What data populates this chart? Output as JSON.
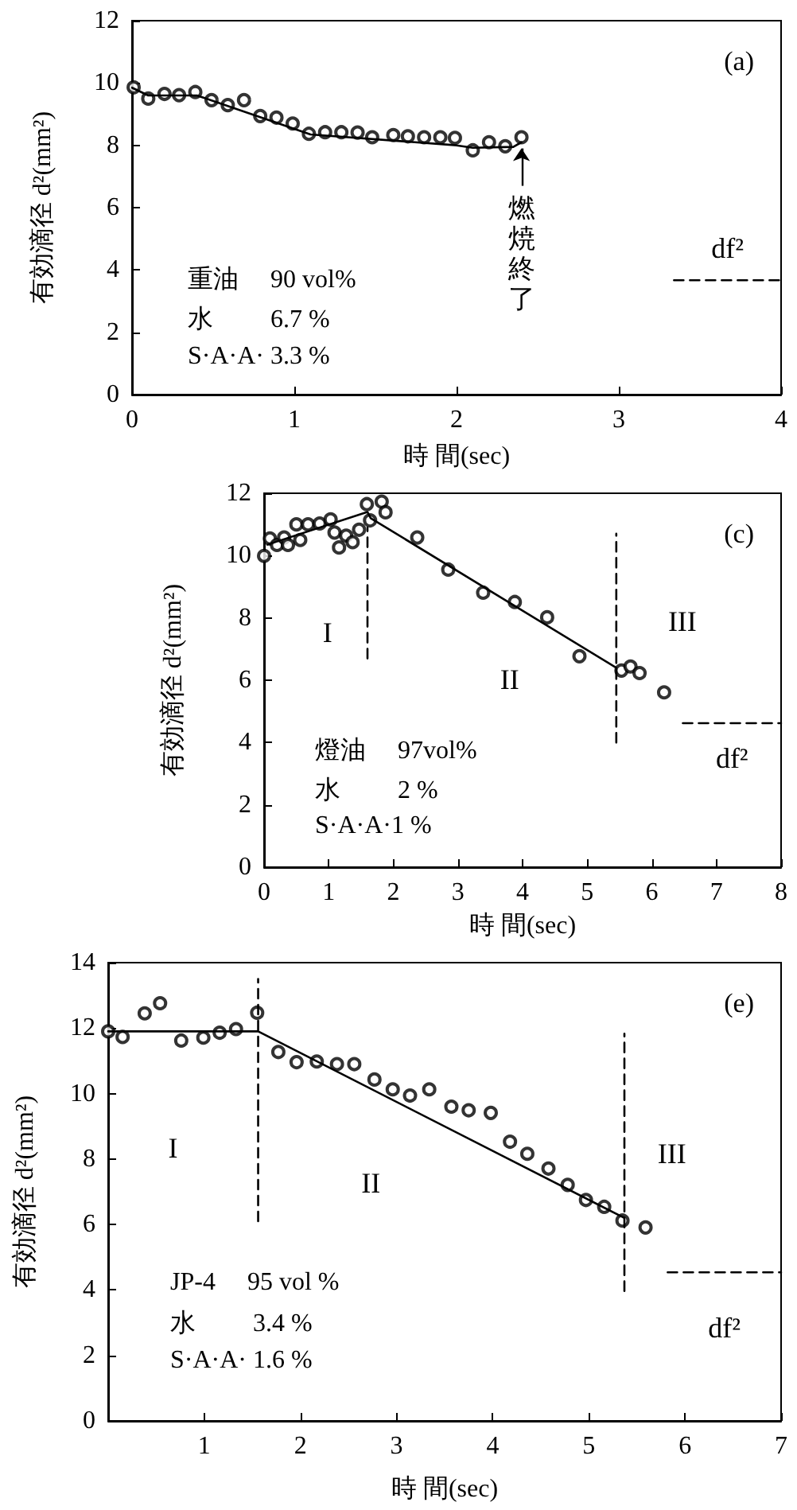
{
  "chart_data": [
    {
      "type": "scatter",
      "title": "(a)",
      "xlabel": "時 間(sec)",
      "ylabel": "有効滴径 d²(mm²)",
      "xlim": [
        0,
        4
      ],
      "ylim": [
        0,
        12
      ],
      "xticks": [
        0,
        1,
        2,
        3,
        4
      ],
      "yticks": [
        0,
        2,
        4,
        6,
        8,
        10,
        12
      ],
      "grid": false,
      "legend": false,
      "series": [
        {
          "type": "scatter",
          "color": "#000000",
          "marker": "circle",
          "x": [
            0.01,
            0.1,
            0.2,
            0.29,
            0.39,
            0.49,
            0.59,
            0.69,
            0.79,
            0.89,
            0.99,
            1.09,
            1.19,
            1.29,
            1.39,
            1.48,
            1.61,
            1.7,
            1.8,
            1.9,
            1.99,
            2.1,
            2.2,
            2.3,
            2.4
          ],
          "values": [
            9.86,
            9.5,
            9.65,
            9.61,
            9.71,
            9.45,
            9.29,
            9.45,
            8.94,
            8.89,
            8.7,
            8.37,
            8.42,
            8.42,
            8.41,
            8.26,
            8.33,
            8.29,
            8.26,
            8.26,
            8.24,
            7.84,
            8.1,
            7.97,
            8.26
          ]
        },
        {
          "type": "line",
          "color": "#000000",
          "marker": "none",
          "line_style": "solid",
          "x": [
            0,
            0.1,
            0.4,
            1.1,
            2.0,
            2.1,
            2.35,
            2.4
          ],
          "values": [
            9.85,
            9.6,
            9.6,
            8.35,
            8.0,
            7.92,
            7.95,
            8.1
          ]
        },
        {
          "type": "line",
          "name": "df²",
          "color": "#000000",
          "marker": "none",
          "line_style": "dashed",
          "x": [
            3.34,
            4
          ],
          "values": [
            3.67,
            3.67
          ]
        }
      ],
      "annotations": [
        "重油　 90 vol%",
        "水　　 6.7 %",
        "S·A·A· 3.3 %",
        {
          "text": "燃焼終了",
          "x": 2.4,
          "y": 8.26
        }
      ]
    },
    {
      "type": "scatter",
      "title": "(c)",
      "xlabel": "時 間(sec)",
      "ylabel": "有効滴径 d²(mm²)",
      "xlim": [
        0,
        8
      ],
      "ylim": [
        0,
        12
      ],
      "xticks": [
        0,
        1,
        2,
        3,
        4,
        5,
        6,
        7,
        8
      ],
      "yticks": [
        0,
        2,
        4,
        6,
        8,
        10,
        12
      ],
      "grid": false,
      "legend": false,
      "series": [
        {
          "type": "scatter",
          "color": "#000000",
          "marker": "circle",
          "x": [
            0,
            0.09,
            0.2,
            0.31,
            0.37,
            0.5,
            0.56,
            0.68,
            0.86,
            1.03,
            1.09,
            1.16,
            1.27,
            1.37,
            1.47,
            1.59,
            1.64,
            1.82,
            1.88,
            2.37,
            2.85,
            3.39,
            3.88,
            4.38,
            4.88,
            5.53,
            5.67,
            5.81,
            6.19
          ],
          "values": [
            9.99,
            10.55,
            10.34,
            10.58,
            10.34,
            11.0,
            10.5,
            11.0,
            11.03,
            11.16,
            10.74,
            10.26,
            10.64,
            10.43,
            10.83,
            11.65,
            11.13,
            11.73,
            11.39,
            10.58,
            9.55,
            8.81,
            8.51,
            8.02,
            6.77,
            6.31,
            6.44,
            6.23,
            5.61
          ]
        },
        {
          "type": "line",
          "color": "#000000",
          "marker": "none",
          "line_style": "solid",
          "x": [
            0.05,
            1.6,
            1.65,
            5.45
          ],
          "values": [
            10.35,
            11.4,
            11.2,
            6.4
          ]
        },
        {
          "type": "line",
          "color": "#000000",
          "marker": "none",
          "line_style": "dashed",
          "x": [
            1.6,
            1.6
          ],
          "values": [
            6.7,
            10.9
          ]
        },
        {
          "type": "line",
          "color": "#000000",
          "marker": "none",
          "line_style": "dashed",
          "x": [
            5.45,
            5.45
          ],
          "values": [
            4.0,
            10.7
          ]
        },
        {
          "type": "line",
          "name": "df²",
          "color": "#000000",
          "marker": "none",
          "line_style": "dashed",
          "x": [
            6.48,
            8
          ],
          "values": [
            4.62,
            4.62
          ]
        }
      ],
      "annotations": [
        "燈油　 97vol%",
        "水　　 2 %",
        "S·A·A·1 %",
        "I",
        "II",
        "III"
      ]
    },
    {
      "type": "scatter",
      "title": "(e)",
      "xlabel": "時 間(sec)",
      "ylabel": "有効滴径 d²(mm²)",
      "xlim": [
        0,
        7
      ],
      "ylim": [
        0,
        14
      ],
      "xticks": [
        1,
        2,
        3,
        4,
        5,
        6,
        7
      ],
      "yticks": [
        0,
        2,
        4,
        6,
        8,
        10,
        12,
        14
      ],
      "grid": false,
      "legend": false,
      "series": [
        {
          "type": "scatter",
          "color": "#000000",
          "marker": "circle",
          "x": [
            0,
            0.15,
            0.38,
            0.54,
            0.76,
            0.99,
            1.16,
            1.33,
            1.55,
            1.77,
            1.96,
            2.17,
            2.38,
            2.56,
            2.77,
            2.96,
            3.14,
            3.34,
            3.57,
            3.75,
            3.98,
            4.18,
            4.36,
            4.58,
            4.78,
            4.97,
            5.16,
            5.35,
            5.59
          ],
          "values": [
            11.9,
            11.73,
            12.45,
            12.76,
            11.62,
            11.71,
            11.86,
            11.97,
            12.47,
            11.27,
            10.96,
            10.98,
            10.9,
            10.9,
            10.43,
            10.13,
            9.94,
            10.13,
            9.6,
            9.49,
            9.41,
            8.53,
            8.16,
            7.71,
            7.21,
            6.75,
            6.54,
            6.12,
            5.91
          ]
        },
        {
          "type": "line",
          "color": "#000000",
          "marker": "none",
          "line_style": "solid",
          "x": [
            0,
            1.56,
            5.37
          ],
          "values": [
            11.9,
            11.9,
            6.2
          ]
        },
        {
          "type": "line",
          "color": "#000000",
          "marker": "none",
          "line_style": "dashed",
          "x": [
            1.56,
            1.56
          ],
          "values": [
            6.1,
            13.5
          ]
        },
        {
          "type": "line",
          "color": "#000000",
          "marker": "none",
          "line_style": "dashed",
          "x": [
            5.37,
            5.37
          ],
          "values": [
            3.97,
            11.83
          ]
        },
        {
          "type": "line",
          "name": "df²",
          "color": "#000000",
          "marker": "none",
          "line_style": "dashed",
          "x": [
            5.82,
            7
          ],
          "values": [
            4.54,
            4.54
          ]
        }
      ],
      "annotations": [
        "JP-4　 95 vol %",
        "水　　 3.4 %",
        "S·A·A· 1.6 %",
        "I",
        "II",
        "III"
      ]
    }
  ]
}
